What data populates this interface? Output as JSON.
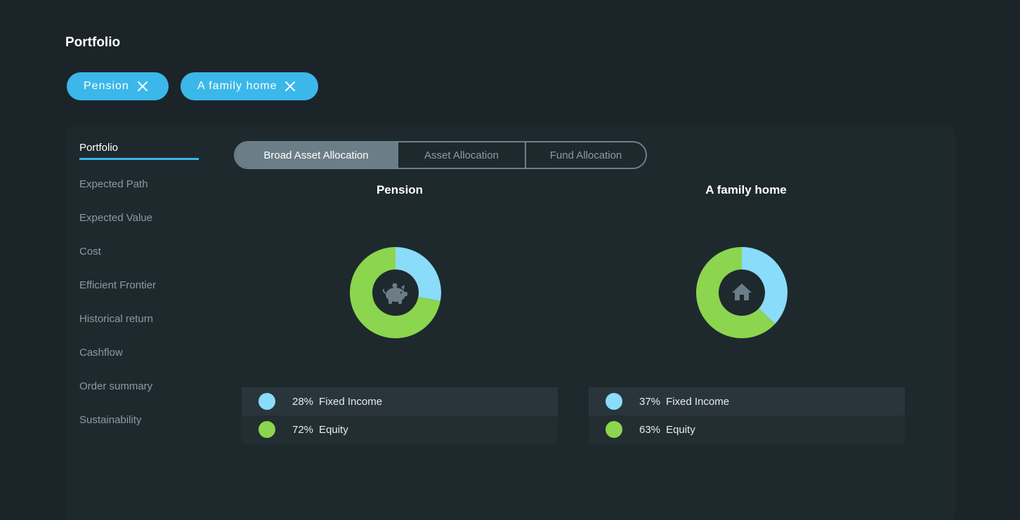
{
  "page": {
    "title": "Portfolio"
  },
  "chips": [
    {
      "label": "Pension"
    },
    {
      "label": "A family home"
    }
  ],
  "nav": {
    "items": [
      {
        "label": "Portfolio",
        "active": true
      },
      {
        "label": "Expected Path"
      },
      {
        "label": "Expected Value"
      },
      {
        "label": "Cost"
      },
      {
        "label": "Efficient Frontier"
      },
      {
        "label": "Historical return"
      },
      {
        "label": "Cashflow"
      },
      {
        "label": "Order summary"
      },
      {
        "label": "Sustainability"
      }
    ]
  },
  "tabs": [
    {
      "label": "Broad Asset Allocation",
      "active": true
    },
    {
      "label": "Asset Allocation"
    },
    {
      "label": "Fund Allocation"
    }
  ],
  "colors": {
    "fixed_income": "#8adcfb",
    "equity": "#8cd54e",
    "accent": "#3bb7ea",
    "center_icon": "#6b7e88"
  },
  "chart_data": [
    {
      "type": "pie",
      "title": "Pension",
      "icon": "piggy-bank-icon",
      "categories": [
        "Fixed Income",
        "Equity"
      ],
      "values": [
        28,
        72
      ],
      "labels": [
        "28%",
        "72%"
      ]
    },
    {
      "type": "pie",
      "title": "A family home",
      "icon": "house-icon",
      "categories": [
        "Fixed Income",
        "Equity"
      ],
      "values": [
        37,
        63
      ],
      "labels": [
        "37%",
        "63%"
      ]
    }
  ]
}
